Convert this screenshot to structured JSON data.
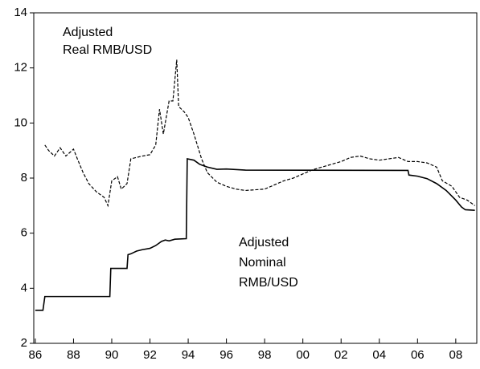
{
  "chart_data": {
    "type": "line",
    "xlim": [
      1985.92,
      2009.1
    ],
    "xticks": [
      {
        "value": 1986,
        "label": "86"
      },
      {
        "value": 1988,
        "label": "88"
      },
      {
        "value": 1990,
        "label": "90"
      },
      {
        "value": 1992,
        "label": "92"
      },
      {
        "value": 1994,
        "label": "94"
      },
      {
        "value": 1996,
        "label": "96"
      },
      {
        "value": 1998,
        "label": "98"
      },
      {
        "value": 2000,
        "label": "00"
      },
      {
        "value": 2002,
        "label": "02"
      },
      {
        "value": 2004,
        "label": "04"
      },
      {
        "value": 2006,
        "label": "06"
      },
      {
        "value": 2008,
        "label": "08"
      }
    ],
    "ylim": [
      2,
      14
    ],
    "yticks": [
      2,
      4,
      6,
      8,
      10,
      12,
      14
    ],
    "series": [
      {
        "name": "Adjusted Nominal RMB/USD",
        "color": "#000000",
        "dash": false,
        "label_lines": [
          "Adjusted",
          "Nominal",
          "RMB/USD"
        ],
        "x": [
          1986.0,
          1986.4,
          1986.5,
          1989.9,
          1989.95,
          1990.8,
          1990.85,
          1991.0,
          1991.3,
          1991.6,
          1992.0,
          1992.3,
          1992.6,
          1992.8,
          1993.0,
          1993.3,
          1993.9,
          1993.95,
          1994.3,
          1994.6,
          1995.0,
          1995.5,
          1996.0,
          1997.0,
          2005.5,
          2005.55,
          2006.0,
          2006.5,
          2007.0,
          2007.5,
          2008.0,
          2008.3,
          2008.5,
          2009.0
        ],
        "values": [
          3.2,
          3.2,
          3.7,
          3.7,
          4.72,
          4.72,
          5.22,
          5.25,
          5.35,
          5.4,
          5.45,
          5.55,
          5.7,
          5.75,
          5.72,
          5.78,
          5.8,
          8.7,
          8.65,
          8.5,
          8.4,
          8.32,
          8.33,
          8.29,
          8.28,
          8.11,
          8.07,
          7.98,
          7.8,
          7.55,
          7.2,
          6.95,
          6.85,
          6.83
        ]
      },
      {
        "name": "Adjusted Real RMB/USD",
        "color": "#000000",
        "dash": true,
        "label_lines": [
          "Adjusted",
          "Real RMB/USD"
        ],
        "x": [
          1986.5,
          1986.7,
          1987.0,
          1987.3,
          1987.6,
          1988.0,
          1988.2,
          1988.5,
          1988.8,
          1989.2,
          1989.6,
          1989.8,
          1990.0,
          1990.3,
          1990.5,
          1990.8,
          1991.0,
          1991.3,
          1991.6,
          1992.0,
          1992.3,
          1992.5,
          1992.7,
          1993.0,
          1993.2,
          1993.4,
          1993.5,
          1993.8,
          1994.0,
          1994.3,
          1994.7,
          1995.0,
          1995.5,
          1996.0,
          1996.5,
          1997.0,
          1998.0,
          1998.5,
          1999.0,
          1999.5,
          2000.0,
          2000.5,
          2001.0,
          2001.5,
          2002.0,
          2002.5,
          2003.0,
          2003.5,
          2004.0,
          2004.5,
          2005.0,
          2005.5,
          2006.0,
          2006.5,
          2007.0,
          2007.3,
          2007.8,
          2008.2,
          2008.6,
          2009.0
        ],
        "values": [
          9.2,
          9.0,
          8.8,
          9.1,
          8.8,
          9.05,
          8.7,
          8.2,
          7.8,
          7.5,
          7.3,
          7.0,
          7.9,
          8.05,
          7.6,
          7.8,
          8.7,
          8.75,
          8.8,
          8.85,
          9.2,
          10.5,
          9.6,
          10.8,
          10.8,
          12.3,
          10.6,
          10.4,
          10.2,
          9.6,
          8.7,
          8.2,
          7.85,
          7.7,
          7.6,
          7.55,
          7.6,
          7.75,
          7.9,
          8.0,
          8.15,
          8.3,
          8.4,
          8.5,
          8.6,
          8.75,
          8.8,
          8.7,
          8.65,
          8.7,
          8.75,
          8.6,
          8.6,
          8.55,
          8.4,
          7.9,
          7.7,
          7.3,
          7.2,
          7.0
        ]
      }
    ]
  }
}
